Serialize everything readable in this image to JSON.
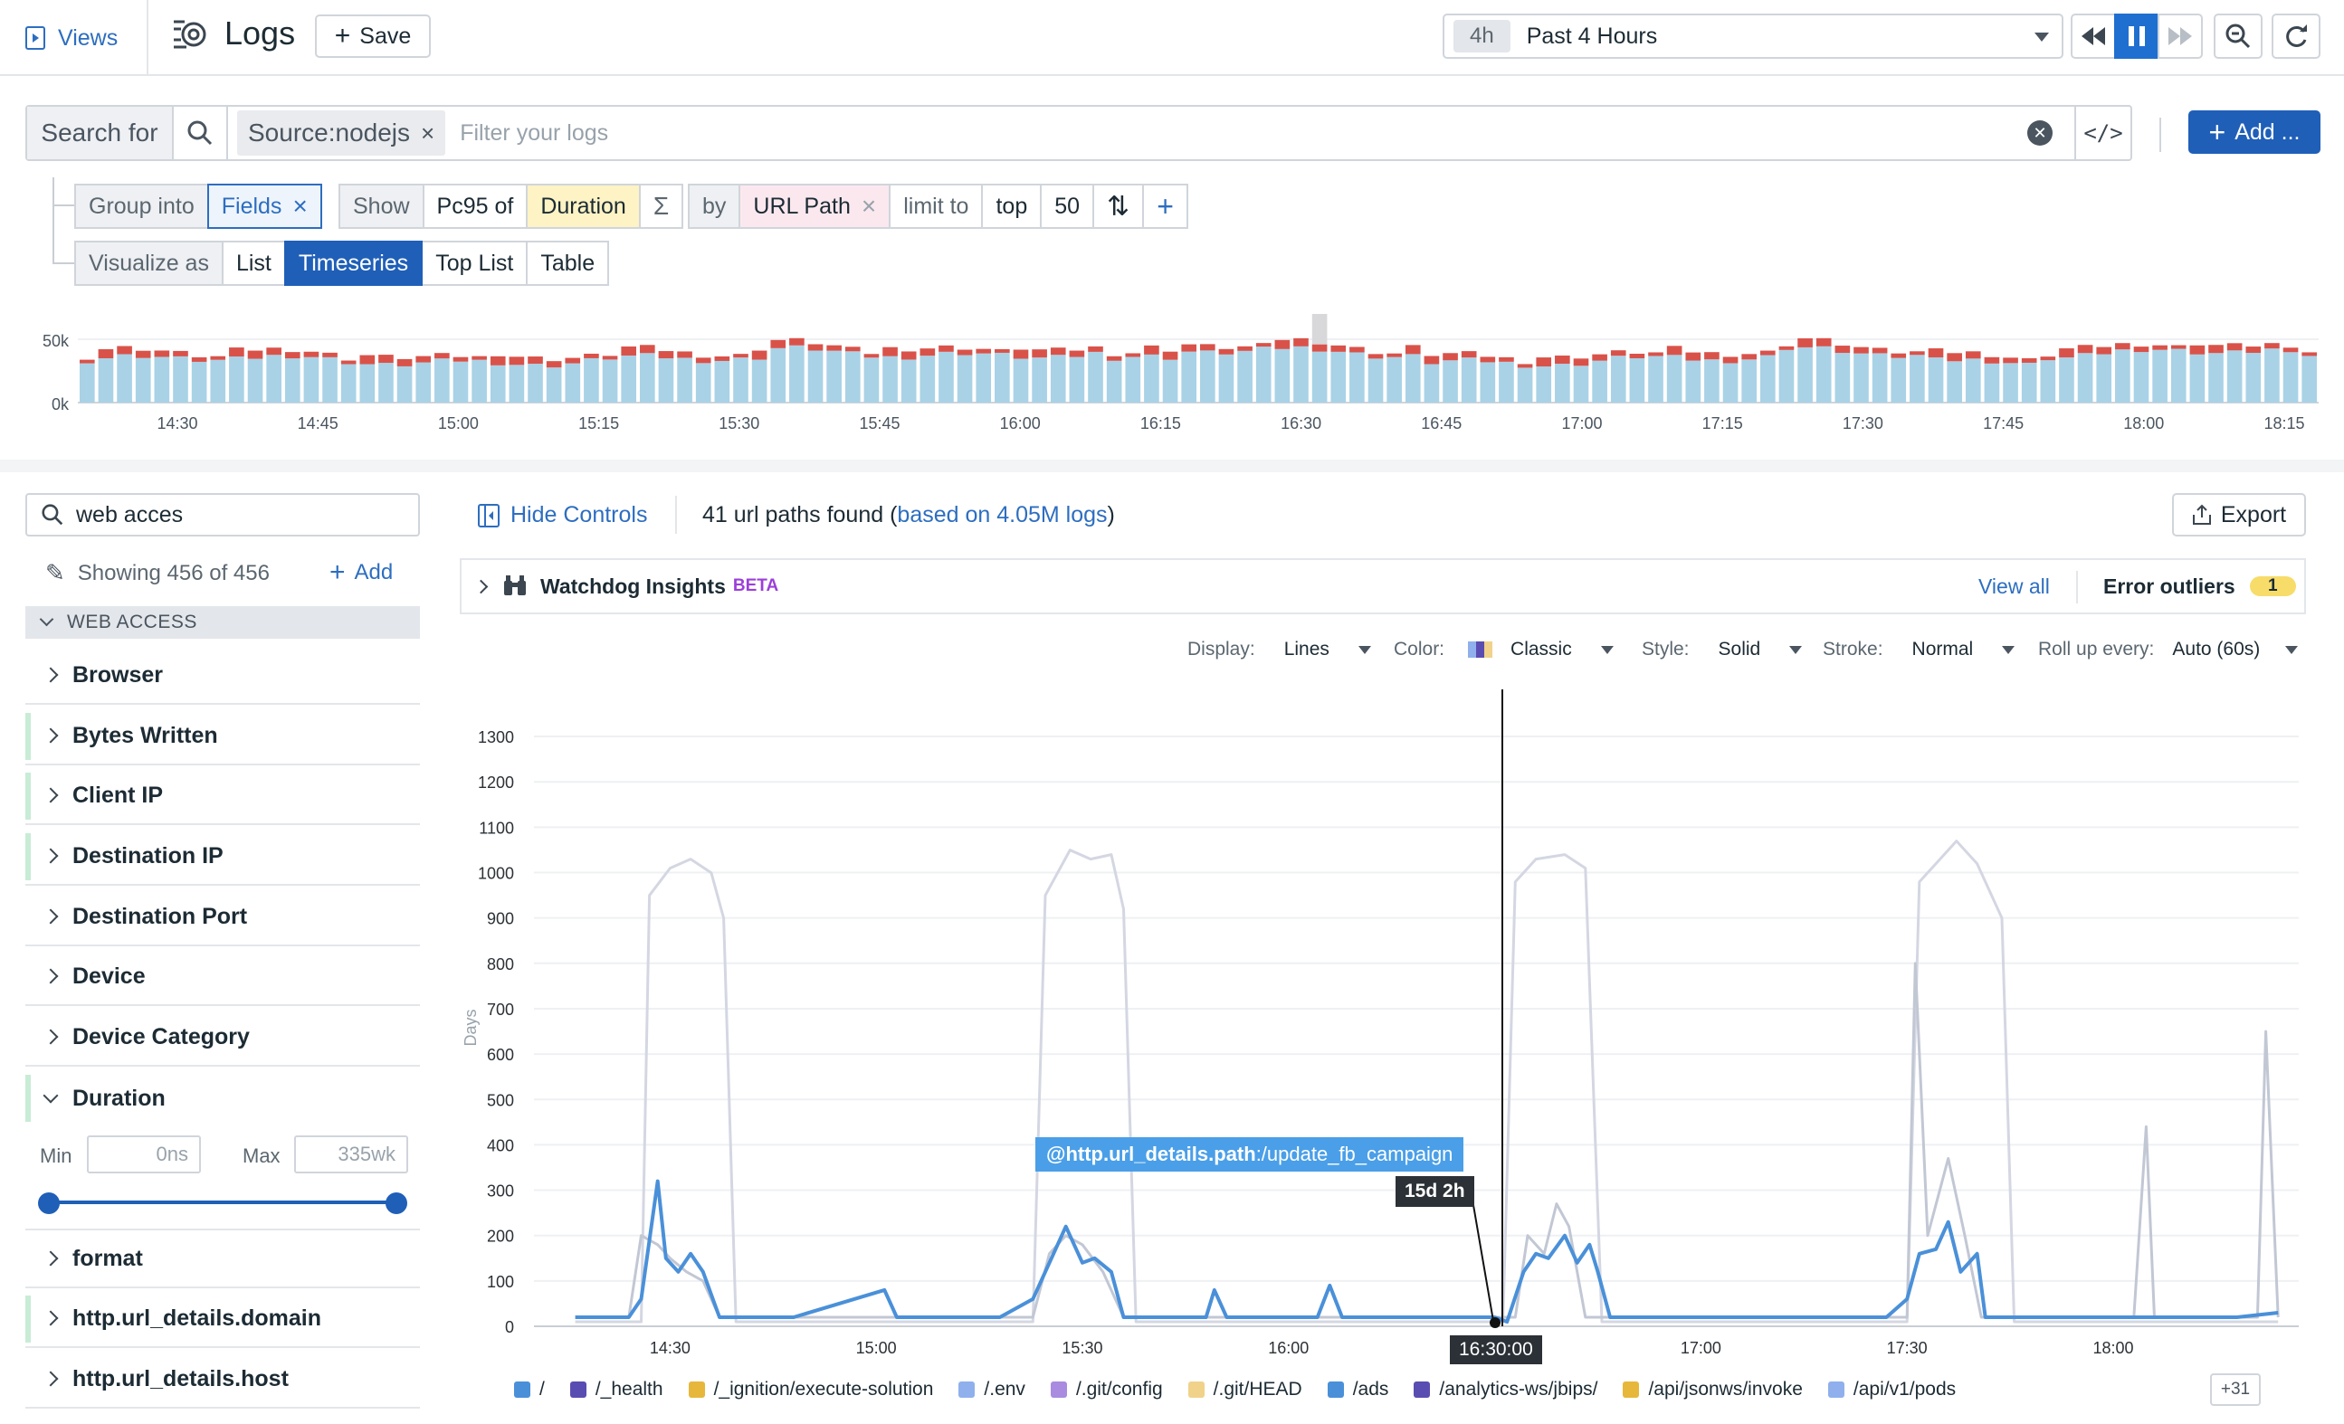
{
  "topbar": {
    "views_label": "Views",
    "title": "Logs",
    "save_label": "Save",
    "time_pill": "4h",
    "time_label": "Past 4 Hours"
  },
  "search": {
    "search_for": "Search for",
    "token": "Source:nodejs",
    "placeholder": "Filter your logs",
    "add_label": "Add ..."
  },
  "query": {
    "group_into": "Group into",
    "fields": "Fields",
    "show": "Show",
    "agg": "Pc95 of",
    "measure": "Duration",
    "sigma": "Σ",
    "by": "by",
    "by_field": "URL Path",
    "limit_to": "limit to",
    "top": "top",
    "limit": "50",
    "visualize_as": "Visualize as",
    "viz_options": [
      "List",
      "Timeseries",
      "Top List",
      "Table"
    ],
    "viz_selected": "Timeseries"
  },
  "histogram": {
    "y_ticks": [
      "50k",
      "0k"
    ],
    "x_ticks": [
      "14:30",
      "14:45",
      "15:00",
      "15:15",
      "15:30",
      "15:45",
      "16:00",
      "16:15",
      "16:30",
      "16:45",
      "17:00",
      "17:15",
      "17:30",
      "17:45",
      "18:00",
      "18:15"
    ],
    "colors": {
      "info": "#a9d2e6",
      "error": "#d9524a",
      "selected": "#d8d8da"
    }
  },
  "sidebar": {
    "search_value": "web acces",
    "showing": "Showing 456 of 456",
    "add": "Add",
    "group": "WEB ACCESS",
    "facets": [
      "Browser",
      "Bytes Written",
      "Client IP",
      "Destination IP",
      "Destination Port",
      "Device",
      "Device Category",
      "Duration",
      "format",
      "http.url_details.domain",
      "http.url_details.host"
    ],
    "duration": {
      "min_label": "Min",
      "min_value": "0ns",
      "max_label": "Max",
      "max_value": "335wk"
    }
  },
  "main": {
    "hide_controls": "Hide Controls",
    "found_prefix": "41 url paths found (",
    "found_link": "based on 4.05M logs",
    "found_suffix": ")",
    "export": "Export",
    "insights_title": "Watchdog Insights",
    "beta": "BETA",
    "view_all": "View all",
    "error_outliers": "Error outliers",
    "error_count": "1",
    "display_label": "Display:",
    "display_value": "Lines",
    "color_label": "Color:",
    "color_value": "Classic",
    "style_label": "Style:",
    "style_value": "Solid",
    "stroke_label": "Stroke:",
    "stroke_value": "Normal",
    "rollup_label": "Roll up every:",
    "rollup_value": "Auto (60s)"
  },
  "chart_data": {
    "type": "line",
    "ylabel": "Days",
    "ylim": [
      0,
      1300
    ],
    "y_ticks": [
      0,
      100,
      200,
      300,
      400,
      500,
      600,
      700,
      800,
      900,
      1000,
      1100,
      1200,
      1300
    ],
    "x_ticks": [
      "14:30",
      "15:00",
      "15:30",
      "16:00",
      "16:30:00",
      "17:00",
      "17:30",
      "18:00"
    ],
    "tooltip_label": "@http.url_details.path",
    "tooltip_value": ":/update_fb_campaign",
    "tooltip_duration": "15d 2h",
    "cursor_time": "16:30:00",
    "legend": [
      {
        "name": "/",
        "color": "#4a90d9"
      },
      {
        "name": "/_health",
        "color": "#5a4db2"
      },
      {
        "name": "/_ignition/execute-solution",
        "color": "#e6b73b"
      },
      {
        "name": "/.env",
        "color": "#8fb0ec"
      },
      {
        "name": "/.git/config",
        "color": "#a98be0"
      },
      {
        "name": "/.git/HEAD",
        "color": "#f0d28a"
      },
      {
        "name": "/ads",
        "color": "#4a90d9"
      },
      {
        "name": "/analytics-ws/jbips/",
        "color": "#5a4db2"
      },
      {
        "name": "/api/jsonws/invoke",
        "color": "#e6b73b"
      },
      {
        "name": "/api/v1/pods",
        "color": "#8fb0ec"
      }
    ],
    "more": "+31",
    "series": [
      {
        "name": "/",
        "color": "#4a90d9",
        "points": [
          [
            14.27,
            20
          ],
          [
            14.4,
            20
          ],
          [
            14.43,
            60
          ],
          [
            14.47,
            320
          ],
          [
            14.49,
            150
          ],
          [
            14.52,
            120
          ],
          [
            14.55,
            160
          ],
          [
            14.58,
            120
          ],
          [
            14.62,
            20
          ],
          [
            14.8,
            20
          ],
          [
            15.02,
            80
          ],
          [
            15.05,
            20
          ],
          [
            15.3,
            20
          ],
          [
            15.38,
            60
          ],
          [
            15.43,
            160
          ],
          [
            15.46,
            220
          ],
          [
            15.5,
            140
          ],
          [
            15.53,
            150
          ],
          [
            15.57,
            120
          ],
          [
            15.6,
            20
          ],
          [
            15.8,
            20
          ],
          [
            15.82,
            80
          ],
          [
            15.85,
            20
          ],
          [
            16.07,
            20
          ],
          [
            16.1,
            90
          ],
          [
            16.13,
            20
          ],
          [
            16.5,
            20
          ],
          [
            16.53,
            10
          ],
          [
            16.57,
            120
          ],
          [
            16.6,
            160
          ],
          [
            16.63,
            150
          ],
          [
            16.67,
            200
          ],
          [
            16.7,
            140
          ],
          [
            16.73,
            180
          ],
          [
            16.75,
            120
          ],
          [
            16.78,
            20
          ],
          [
            17.45,
            20
          ],
          [
            17.5,
            60
          ],
          [
            17.53,
            160
          ],
          [
            17.57,
            170
          ],
          [
            17.6,
            230
          ],
          [
            17.63,
            120
          ],
          [
            17.67,
            160
          ],
          [
            17.69,
            20
          ],
          [
            18.0,
            20
          ],
          [
            18.3,
            20
          ],
          [
            18.4,
            30
          ]
        ]
      },
      {
        "name": "/_health",
        "color": "#c2c7d4",
        "points": [
          [
            14.4,
            20
          ],
          [
            14.43,
            200
          ],
          [
            14.47,
            180
          ],
          [
            14.5,
            150
          ],
          [
            14.54,
            120
          ],
          [
            14.58,
            100
          ],
          [
            14.62,
            20
          ],
          [
            15.38,
            20
          ],
          [
            15.42,
            160
          ],
          [
            15.46,
            200
          ],
          [
            15.5,
            180
          ],
          [
            15.55,
            120
          ],
          [
            15.6,
            20
          ],
          [
            16.55,
            20
          ],
          [
            16.58,
            200
          ],
          [
            16.62,
            160
          ],
          [
            16.65,
            270
          ],
          [
            16.68,
            220
          ],
          [
            16.72,
            20
          ],
          [
            17.5,
            20
          ],
          [
            17.52,
            800
          ],
          [
            17.55,
            200
          ],
          [
            17.6,
            370
          ],
          [
            17.64,
            200
          ],
          [
            17.68,
            20
          ],
          [
            18.05,
            20
          ],
          [
            18.08,
            440
          ],
          [
            18.1,
            20
          ],
          [
            18.35,
            20
          ],
          [
            18.37,
            650
          ],
          [
            18.4,
            20
          ]
        ]
      },
      {
        "name": "/.env",
        "color": "#d4d7e2",
        "points": [
          [
            14.27,
            10
          ],
          [
            14.43,
            10
          ],
          [
            14.45,
            950
          ],
          [
            14.5,
            1010
          ],
          [
            14.55,
            1030
          ],
          [
            14.6,
            1000
          ],
          [
            14.63,
            900
          ],
          [
            14.66,
            10
          ],
          [
            15.38,
            10
          ],
          [
            15.41,
            950
          ],
          [
            15.47,
            1050
          ],
          [
            15.52,
            1030
          ],
          [
            15.57,
            1040
          ],
          [
            15.6,
            920
          ],
          [
            15.63,
            10
          ],
          [
            16.52,
            10
          ],
          [
            16.55,
            980
          ],
          [
            16.6,
            1030
          ],
          [
            16.67,
            1040
          ],
          [
            16.72,
            1010
          ],
          [
            16.76,
            10
          ],
          [
            17.5,
            10
          ],
          [
            17.53,
            980
          ],
          [
            17.57,
            1020
          ],
          [
            17.62,
            1070
          ],
          [
            17.67,
            1020
          ],
          [
            17.73,
            900
          ],
          [
            17.76,
            10
          ],
          [
            18.4,
            10
          ]
        ]
      }
    ]
  }
}
